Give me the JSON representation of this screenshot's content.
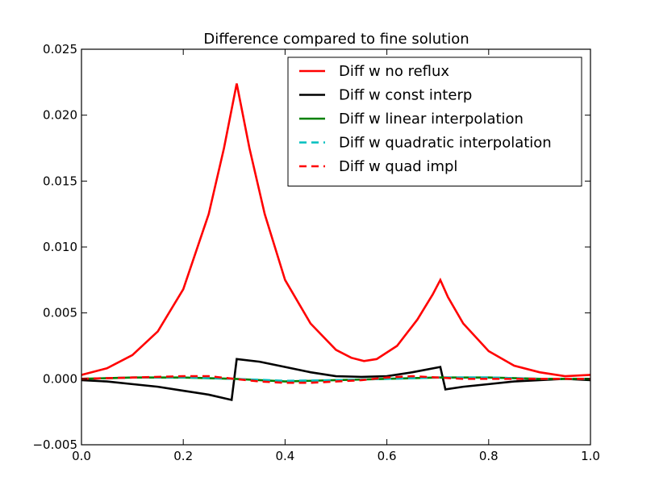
{
  "chart_data": {
    "type": "line",
    "title": "Difference compared to fine solution",
    "xlabel": "",
    "ylabel": "",
    "xlim": [
      0.0,
      1.0
    ],
    "ylim": [
      -0.005,
      0.025
    ],
    "xticks": [
      "0.0",
      "0.2",
      "0.4",
      "0.6",
      "0.8",
      "1.0"
    ],
    "yticks": [
      "−0.005",
      "0.000",
      "0.005",
      "0.010",
      "0.015",
      "0.020",
      "0.025"
    ],
    "legend_position": "top-right",
    "grid": false,
    "series": [
      {
        "name": "Diff w no reflux",
        "color": "#ff0000",
        "dash": "solid",
        "x": [
          0.0,
          0.05,
          0.1,
          0.15,
          0.2,
          0.25,
          0.28,
          0.305,
          0.33,
          0.36,
          0.4,
          0.45,
          0.5,
          0.53,
          0.555,
          0.58,
          0.62,
          0.66,
          0.69,
          0.705,
          0.72,
          0.75,
          0.8,
          0.85,
          0.9,
          0.95,
          1.0
        ],
        "y": [
          0.0003,
          0.0008,
          0.0018,
          0.0036,
          0.0068,
          0.0125,
          0.0175,
          0.0224,
          0.0175,
          0.0125,
          0.0075,
          0.0042,
          0.0022,
          0.0016,
          0.00135,
          0.0015,
          0.0025,
          0.0045,
          0.0064,
          0.0075,
          0.0062,
          0.0042,
          0.0021,
          0.001,
          0.0005,
          0.0002,
          0.0003
        ]
      },
      {
        "name": "Diff w const interp",
        "color": "#000000",
        "dash": "solid",
        "x": [
          0.0,
          0.05,
          0.1,
          0.15,
          0.2,
          0.25,
          0.295,
          0.305,
          0.35,
          0.4,
          0.45,
          0.5,
          0.55,
          0.6,
          0.65,
          0.705,
          0.715,
          0.75,
          0.8,
          0.85,
          0.9,
          0.95,
          1.0
        ],
        "y": [
          -0.0001,
          -0.0002,
          -0.0004,
          -0.0006,
          -0.0009,
          -0.0012,
          -0.0016,
          0.0015,
          0.0013,
          0.0009,
          0.0005,
          0.0002,
          0.00015,
          0.0002,
          0.0005,
          0.0009,
          -0.0008,
          -0.0006,
          -0.0004,
          -0.0002,
          -0.0001,
          0.0,
          -0.0001
        ]
      },
      {
        "name": "Diff w linear interpolation",
        "color": "#008000",
        "dash": "solid",
        "x": [
          0.0,
          0.1,
          0.2,
          0.3,
          0.4,
          0.5,
          0.6,
          0.7,
          0.8,
          0.9,
          1.0
        ],
        "y": [
          0.0,
          0.0001,
          0.0001,
          0.0,
          -0.0002,
          -0.0001,
          0.0,
          0.0001,
          0.0001,
          0.0,
          0.0
        ]
      },
      {
        "name": "Diff w quadratic interpolation",
        "color": "#00bfbf",
        "dash": "dashed",
        "x": [
          0.0,
          0.1,
          0.2,
          0.3,
          0.4,
          0.5,
          0.6,
          0.7,
          0.8,
          0.9,
          1.0
        ],
        "y": [
          0.0,
          0.0001,
          0.00012,
          0.0,
          -0.00015,
          -0.0001,
          0.0,
          0.0001,
          0.0001,
          0.0,
          0.0
        ]
      },
      {
        "name": "Diff w quad impl",
        "color": "#ff0000",
        "dash": "dashed",
        "x": [
          0.0,
          0.1,
          0.2,
          0.25,
          0.3,
          0.35,
          0.4,
          0.45,
          0.5,
          0.55,
          0.6,
          0.65,
          0.7,
          0.75,
          0.8,
          0.9,
          1.0
        ],
        "y": [
          0.0,
          0.0001,
          0.0002,
          0.0002,
          0.0,
          -0.0002,
          -0.0003,
          -0.0003,
          -0.0002,
          -0.0001,
          0.0001,
          0.0002,
          0.0001,
          0.0,
          0.0,
          0.0,
          0.0
        ]
      }
    ]
  }
}
